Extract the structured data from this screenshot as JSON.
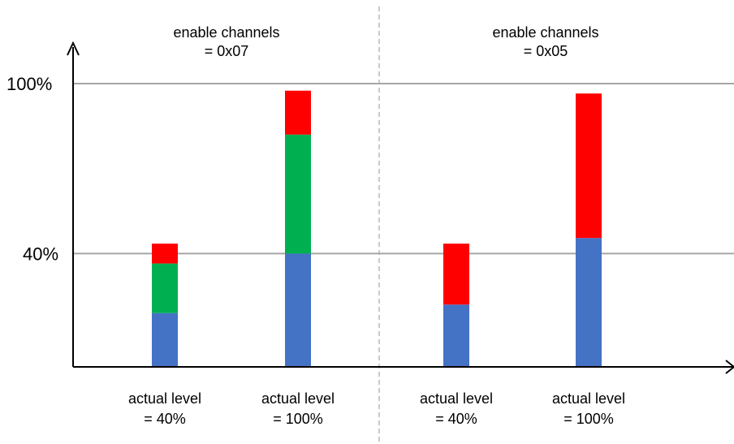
{
  "chart_data": {
    "type": "bar",
    "stacked": true,
    "title": "",
    "xlabel": "",
    "ylabel": "",
    "ylim": [
      0,
      100
    ],
    "grid": true,
    "yticks": [
      "40%",
      "100%"
    ],
    "ytick_values": [
      40,
      100
    ],
    "groups": [
      {
        "title_line1": "enable channels",
        "title_line2": "= 0x07"
      },
      {
        "title_line1": "enable channels",
        "title_line2": "= 0x05"
      }
    ],
    "categories": [
      {
        "line1": "actual level",
        "line2": "= 40%",
        "group": 0
      },
      {
        "line1": "actual level",
        "line2": "= 100%",
        "group": 0
      },
      {
        "line1": "actual level",
        "line2": "= 40%",
        "group": 1
      },
      {
        "line1": "actual level",
        "line2": "= 100%",
        "group": 1
      }
    ],
    "series": [
      {
        "color": "#4472C4",
        "values": [
          19,
          40,
          22,
          45.5
        ]
      },
      {
        "color": "#00B050",
        "values": [
          17.5,
          42,
          0,
          0
        ]
      },
      {
        "color": "#FF0000",
        "values": [
          7,
          15.5,
          21.5,
          51
        ]
      }
    ]
  },
  "colors": {
    "axis": "#000000",
    "gridline": "#A6A6A6",
    "divider": "#A6A6A6"
  }
}
